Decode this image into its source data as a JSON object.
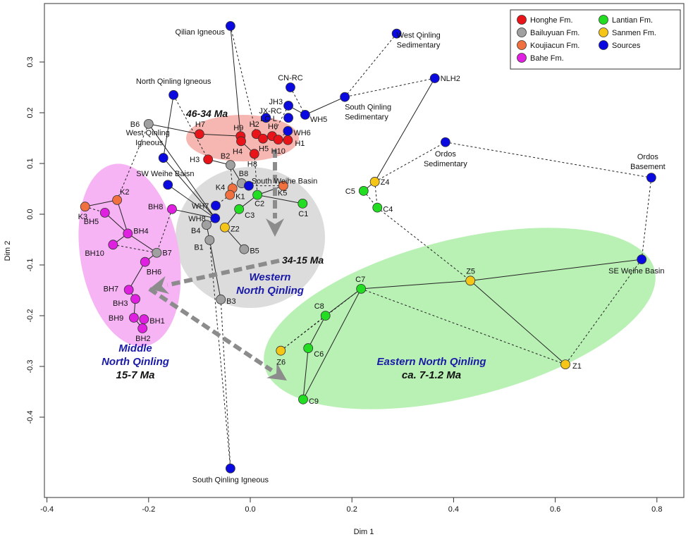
{
  "chart_data": {
    "type": "scatter",
    "xlabel": "Dim 1",
    "ylabel": "Dim 2",
    "xlim": [
      -0.42,
      0.85
    ],
    "ylim": [
      -0.56,
      0.415
    ],
    "xticks": [
      "-0.4",
      "-0.2",
      "0.0",
      "0.2",
      "0.4",
      "0.6",
      "0.8"
    ],
    "yticks": [
      "-0.4",
      "-0.3",
      "-0.2",
      "-0.1",
      "0.0",
      "0.1",
      "0.2",
      "0.3"
    ],
    "grid": false,
    "legend_position": "top-right",
    "series": [
      {
        "name": "Honghe Fm.",
        "color": "#e8141a",
        "points": [
          {
            "label": "H7",
            "x": -0.1,
            "y": 0.158
          },
          {
            "label": "H9",
            "x": -0.019,
            "y": 0.154
          },
          {
            "label": "H4",
            "x": -0.018,
            "y": 0.144
          },
          {
            "label": "H2",
            "x": 0.012,
            "y": 0.158
          },
          {
            "label": "H5",
            "x": 0.025,
            "y": 0.149
          },
          {
            "label": "H6",
            "x": 0.043,
            "y": 0.154
          },
          {
            "label": "H10",
            "x": 0.055,
            "y": 0.147
          },
          {
            "label": "H1",
            "x": 0.074,
            "y": 0.146
          },
          {
            "label": "H8",
            "x": 0.008,
            "y": 0.119
          },
          {
            "label": "H3",
            "x": -0.083,
            "y": 0.108
          }
        ]
      },
      {
        "name": "Bailuyuan Fm.",
        "color": "#a0a0a0",
        "points": [
          {
            "label": "B6",
            "x": -0.2,
            "y": 0.178
          },
          {
            "label": "B2",
            "x": -0.039,
            "y": 0.097
          },
          {
            "label": "B8",
            "x": -0.017,
            "y": 0.061
          },
          {
            "label": "B7",
            "x": -0.184,
            "y": -0.076
          },
          {
            "label": "B4",
            "x": -0.086,
            "y": -0.021
          },
          {
            "label": "B1",
            "x": -0.08,
            "y": -0.051
          },
          {
            "label": "B5",
            "x": -0.012,
            "y": -0.069
          },
          {
            "label": "B3",
            "x": -0.058,
            "y": -0.168
          }
        ]
      },
      {
        "name": "Koujiacun Fm.",
        "color": "#f07040",
        "points": [
          {
            "label": "K4",
            "x": -0.035,
            "y": 0.051
          },
          {
            "label": "K1",
            "x": -0.04,
            "y": 0.038
          },
          {
            "label": "K5",
            "x": 0.065,
            "y": 0.056
          },
          {
            "label": "K2",
            "x": -0.262,
            "y": 0.028
          },
          {
            "label": "K3",
            "x": -0.325,
            "y": 0.015
          }
        ]
      },
      {
        "name": "Bahe Fm.",
        "color": "#e020e0",
        "points": [
          {
            "label": "BH8",
            "x": -0.154,
            "y": 0.01
          },
          {
            "label": "BH5",
            "x": -0.286,
            "y": 0.003
          },
          {
            "label": "BH4",
            "x": -0.241,
            "y": -0.038
          },
          {
            "label": "BH10",
            "x": -0.27,
            "y": -0.06
          },
          {
            "label": "BH6",
            "x": -0.207,
            "y": -0.094
          },
          {
            "label": "BH7",
            "x": -0.239,
            "y": -0.149
          },
          {
            "label": "BH3",
            "x": -0.226,
            "y": -0.167
          },
          {
            "label": "BH9",
            "x": -0.229,
            "y": -0.204
          },
          {
            "label": "BH1",
            "x": -0.209,
            "y": -0.207
          },
          {
            "label": "BH2",
            "x": -0.212,
            "y": -0.225
          }
        ]
      },
      {
        "name": "Lantian Fm.",
        "color": "#22dd22",
        "points": [
          {
            "label": "C2",
            "x": 0.014,
            "y": 0.038
          },
          {
            "label": "C1",
            "x": 0.103,
            "y": 0.021
          },
          {
            "label": "C3",
            "x": -0.022,
            "y": 0.01
          },
          {
            "label": "C5",
            "x": 0.223,
            "y": 0.046
          },
          {
            "label": "C4",
            "x": 0.25,
            "y": 0.013
          },
          {
            "label": "C7",
            "x": 0.218,
            "y": -0.147
          },
          {
            "label": "C8",
            "x": 0.148,
            "y": -0.2
          },
          {
            "label": "C6",
            "x": 0.114,
            "y": -0.264
          },
          {
            "label": "C9",
            "x": 0.104,
            "y": -0.365
          }
        ]
      },
      {
        "name": "Sanmen Fm.",
        "color": "#f5c518",
        "points": [
          {
            "label": "Z4",
            "x": 0.245,
            "y": 0.064
          },
          {
            "label": "Z2",
            "x": -0.05,
            "y": -0.026
          },
          {
            "label": "Z5",
            "x": 0.433,
            "y": -0.131
          },
          {
            "label": "Z6",
            "x": 0.06,
            "y": -0.269
          },
          {
            "label": "Z1",
            "x": 0.62,
            "y": -0.296
          }
        ]
      },
      {
        "name": "Sources",
        "color": "#0a0ae0",
        "points": [
          {
            "label": "Qilian Igneous",
            "x": -0.039,
            "y": 0.371
          },
          {
            "label": "West Qinling Sedimentary",
            "x": 0.288,
            "y": 0.356
          },
          {
            "label": "North Qinling Igneous",
            "x": -0.151,
            "y": 0.235
          },
          {
            "label": "CN-RC",
            "x": 0.079,
            "y": 0.25
          },
          {
            "label": "NLH2",
            "x": 0.363,
            "y": 0.268
          },
          {
            "label": "JH3",
            "x": 0.075,
            "y": 0.214
          },
          {
            "label": "JX-RC",
            "x": 0.031,
            "y": 0.19
          },
          {
            "label": "LC-L",
            "x": 0.075,
            "y": 0.19
          },
          {
            "label": "WH5",
            "x": 0.108,
            "y": 0.196
          },
          {
            "label": "South Qinling Sedimentary",
            "x": 0.186,
            "y": 0.231
          },
          {
            "label": "WH6",
            "x": 0.074,
            "y": 0.164
          },
          {
            "label": "Ordos Sedimentary",
            "x": 0.384,
            "y": 0.142
          },
          {
            "label": "Ordos Basement",
            "x": 0.789,
            "y": 0.072
          },
          {
            "label": "West Qinling Igneous",
            "x": -0.171,
            "y": 0.111
          },
          {
            "label": "SW Weihe Baisn",
            "x": -0.162,
            "y": 0.058
          },
          {
            "label": "South Weihe Basin",
            "x": -0.003,
            "y": 0.056
          },
          {
            "label": "WH7",
            "x": -0.068,
            "y": 0.017
          },
          {
            "label": "WH8",
            "x": -0.069,
            "y": -0.008
          },
          {
            "label": "SE Weihe Basin",
            "x": 0.77,
            "y": -0.089
          },
          {
            "label": "South Qinling Igneous",
            "x": -0.039,
            "y": -0.501
          }
        ]
      }
    ],
    "links_solid": [
      [
        "Qilian Igneous",
        "H9"
      ],
      [
        "South Qinling Sedimentary",
        "WH5"
      ],
      [
        "WH5",
        "JH3"
      ],
      [
        "NLH2",
        "Z4"
      ],
      [
        "Z4",
        "C5"
      ],
      [
        "B6",
        "H7"
      ],
      [
        "H7",
        "H9"
      ],
      [
        "H9",
        "H4"
      ],
      [
        "H4",
        "H8"
      ],
      [
        "H3",
        "B2"
      ],
      [
        "B2",
        "B8"
      ],
      [
        "B8",
        "South Weihe Basin"
      ],
      [
        "North Qinling Igneous",
        "West Qinling Igneous"
      ],
      [
        "West Qinling Igneous",
        "WH8"
      ],
      [
        "SW Weihe Baisn",
        "WH8"
      ],
      [
        "B6",
        "WH8"
      ],
      [
        "WH8",
        "B4"
      ],
      [
        "B4",
        "B1"
      ],
      [
        "B1",
        "B3"
      ],
      [
        "WH8",
        "BH8"
      ],
      [
        "Z2",
        "B5"
      ],
      [
        "Z2",
        "C3"
      ],
      [
        "C3",
        "C2"
      ],
      [
        "C2",
        "C1"
      ],
      [
        "C2",
        "K5"
      ],
      [
        "K3",
        "K2"
      ],
      [
        "K2",
        "BH4"
      ],
      [
        "BH4",
        "BH10"
      ],
      [
        "BH4",
        "B7"
      ],
      [
        "BH5",
        "BH4"
      ],
      [
        "B7",
        "BH6"
      ],
      [
        "BH6",
        "BH7"
      ],
      [
        "BH7",
        "BH3"
      ],
      [
        "BH3",
        "BH9"
      ],
      [
        "BH9",
        "BH2"
      ],
      [
        "BH1",
        "BH2"
      ],
      [
        "SE Weihe Basin",
        "Z5"
      ],
      [
        "Z5",
        "C7"
      ],
      [
        "C7",
        "C8"
      ],
      [
        "C8",
        "C6"
      ],
      [
        "C6",
        "C9"
      ],
      [
        "C9",
        "C7"
      ],
      [
        "Z5",
        "Z1"
      ],
      [
        "H2",
        "H1"
      ]
    ],
    "links_dashed": [
      [
        "Qilian Igneous",
        "H2"
      ],
      [
        "West Qinling Sedimentary",
        "South Qinling Sedimentary"
      ],
      [
        "NLH2",
        "South Qinling Sedimentary"
      ],
      [
        "CN-RC",
        "WH5"
      ],
      [
        "JH3",
        "H6"
      ],
      [
        "WH6",
        "H10"
      ],
      [
        "Z4",
        "Ordos Sedimentary"
      ],
      [
        "Ordos Sedimentary",
        "Ordos Basement"
      ],
      [
        "Ordos Basement",
        "SE Weihe Basin"
      ],
      [
        "SE Weihe Basin",
        "Z1"
      ],
      [
        "C7",
        "Z1"
      ],
      [
        "C4",
        "Z5"
      ],
      [
        "C5",
        "C4"
      ],
      [
        "Z4",
        "C4"
      ],
      [
        "Z6",
        "C7"
      ],
      [
        "Z6",
        "C8"
      ],
      [
        "North Qinling Igneous",
        "H3"
      ],
      [
        "B3",
        "South Qinling Igneous"
      ],
      [
        "South Qinling Igneous",
        "B1"
      ],
      [
        "BH10",
        "B7"
      ],
      [
        "K3",
        "BH5"
      ],
      [
        "K2",
        "B6"
      ],
      [
        "BH8",
        "B7"
      ],
      [
        "K4",
        "B2"
      ],
      [
        "K1",
        "WH7"
      ],
      [
        "H8",
        "C2"
      ],
      [
        "K5",
        "South Weihe Basin"
      ]
    ],
    "annotations": {
      "early": "46-34 Ma",
      "mid": "34-15 Ma",
      "western": [
        "Western",
        "North Qinling"
      ],
      "middle": [
        "Middle",
        "North Qinling",
        "15-7 Ma"
      ],
      "eastern": [
        "Eastern North Qinling",
        "ca. 7-1.2 Ma"
      ]
    },
    "colors": {
      "annot_blue": "#1a1aa8",
      "arrow": "#8c8c8c",
      "ellipse_red": "#f6b7b2",
      "ellipse_grey": "#dcdcdc",
      "ellipse_pink": "#f6b4f4",
      "ellipse_green": "#b9f1b5"
    }
  }
}
